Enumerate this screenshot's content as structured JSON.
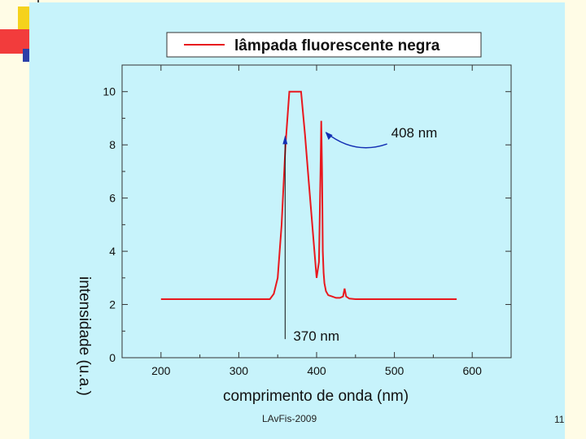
{
  "slide": {
    "footer": "LAvFis-2009",
    "page_number": "11"
  },
  "chart_data": {
    "type": "line",
    "legend": "lâmpada fluorescente negra",
    "legend_position": "top",
    "xlabel": "comprimento de onda (nm)",
    "ylabel": "intensidade (u.a.)",
    "xlim": [
      150,
      650
    ],
    "ylim": [
      0,
      11
    ],
    "xticks": [
      200,
      300,
      400,
      500,
      600
    ],
    "yticks": [
      0,
      2,
      4,
      6,
      8,
      10
    ],
    "series": [
      {
        "name": "lâmpada fluorescente negra",
        "color": "#e8181e",
        "x": [
          200,
          250,
          300,
          340,
          345,
          350,
          355,
          360,
          365,
          370,
          375,
          380,
          385,
          390,
          395,
          400,
          403,
          405,
          406,
          407,
          408,
          409,
          410,
          412,
          415,
          420,
          425,
          430,
          434,
          436,
          438,
          442,
          450,
          500,
          550,
          580
        ],
        "y": [
          2.2,
          2.2,
          2.2,
          2.2,
          2.4,
          3.0,
          5.0,
          8.0,
          10.0,
          10.0,
          10.0,
          10.0,
          8.4,
          6.6,
          4.8,
          3.0,
          3.6,
          7.0,
          8.9,
          7.0,
          4.0,
          3.2,
          2.8,
          2.5,
          2.35,
          2.3,
          2.25,
          2.25,
          2.3,
          2.6,
          2.3,
          2.22,
          2.2,
          2.2,
          2.2,
          2.2
        ]
      }
    ],
    "annotations": [
      {
        "label": "408 nm",
        "x": 408,
        "y": 8.4,
        "style": "curved-arrow",
        "color": "#1430b4"
      },
      {
        "label": "370 nm",
        "x": 370,
        "y": 0.7,
        "style": "vertical-arrow",
        "color": "#111111"
      }
    ]
  }
}
